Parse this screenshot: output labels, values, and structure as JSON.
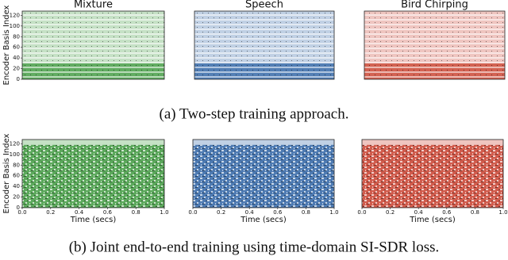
{
  "figure": {
    "y_axis_label": "Encoder Basis Index",
    "x_axis_label": "Time (secs)",
    "panel_titles": [
      "Mixture",
      "Speech",
      "Bird Chirping"
    ],
    "colors": [
      "#3f9a3f",
      "#2f64a6",
      "#c9402e"
    ],
    "ylim": [
      0,
      128
    ],
    "yticks": [
      0,
      20,
      40,
      60,
      80,
      100,
      120
    ],
    "xlim": [
      0,
      1
    ],
    "xticks": [
      {
        "value": 0,
        "label": "0.0"
      },
      {
        "value": 0.2,
        "label": "0.2"
      },
      {
        "value": 0.4,
        "label": "0.4"
      },
      {
        "value": 0.6,
        "label": "0.6"
      },
      {
        "value": 0.8,
        "label": "0.8"
      },
      {
        "value": 1,
        "label": "1.0"
      }
    ],
    "rows": [
      {
        "caption": "(a) Two-step training approach."
      },
      {
        "caption": "(b) Joint end-to-end training using time-domain SI-SDR loss."
      }
    ]
  }
}
